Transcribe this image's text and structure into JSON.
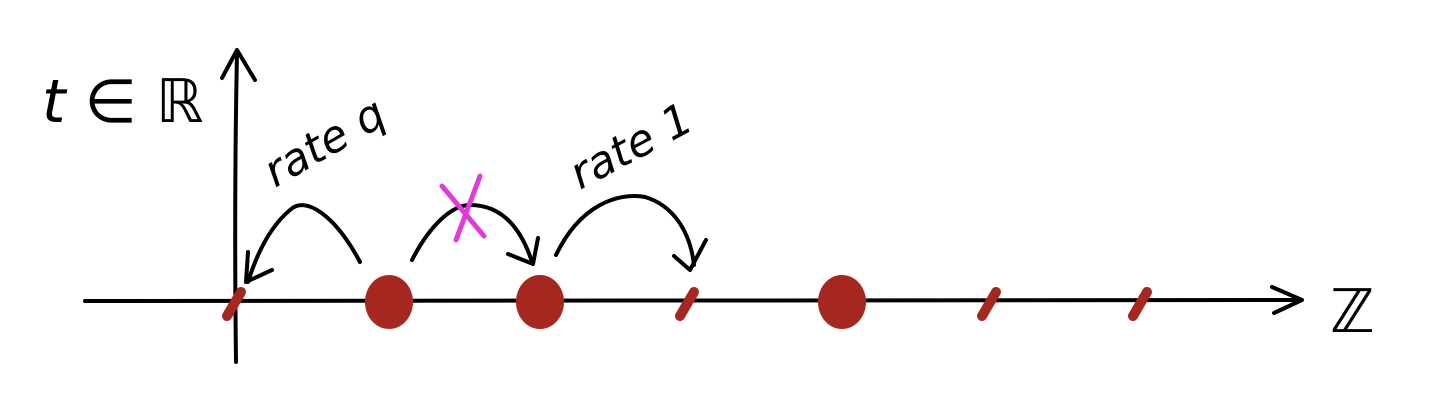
{
  "axes": {
    "vertical_label": "t ∈ ℝ",
    "horizontal_label": "ℤ"
  },
  "annotations": {
    "left_jump_label": "rate q",
    "right_jump_label": "rate 1"
  },
  "sites": [
    {
      "index": 0,
      "occupied": false
    },
    {
      "index": 1,
      "occupied": true
    },
    {
      "index": 2,
      "occupied": true
    },
    {
      "index": 3,
      "occupied": false
    },
    {
      "index": 4,
      "occupied": true
    },
    {
      "index": 5,
      "occupied": false
    },
    {
      "index": 6,
      "occupied": false
    }
  ],
  "colors": {
    "ink": "#000000",
    "particle": "#a5271f",
    "blocked_mark": "#e23ad6"
  }
}
